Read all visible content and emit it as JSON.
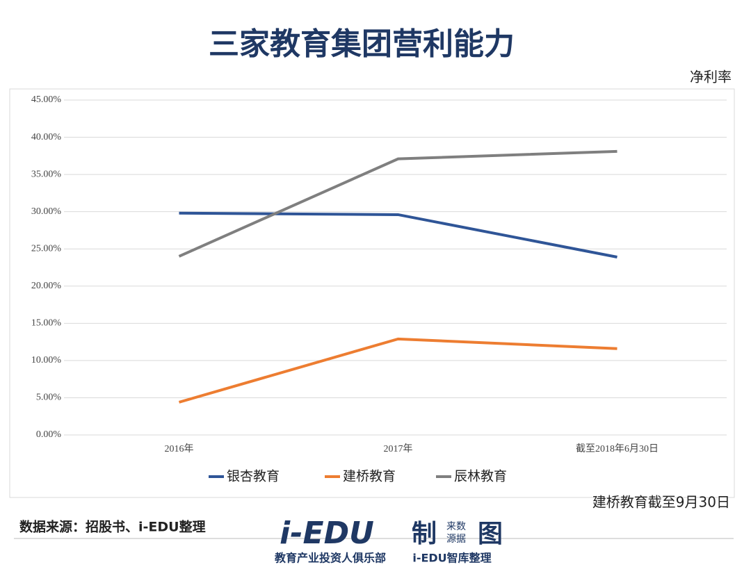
{
  "chart_data": {
    "type": "line",
    "title": "三家教育集团营利能力",
    "y_label": "净利率",
    "note": "建桥教育截至9月30日",
    "categories": [
      "2016年",
      "2017年",
      "截至2018年6月30日"
    ],
    "series": [
      {
        "name": "银杏教育",
        "color": "#2f5597",
        "values": [
          29.8,
          29.6,
          23.9
        ]
      },
      {
        "name": "建桥教育",
        "color": "#ed7d31",
        "values": [
          4.4,
          12.9,
          11.6
        ]
      },
      {
        "name": "辰林教育",
        "color": "#7f7f7f",
        "values": [
          24.0,
          37.1,
          38.1
        ]
      }
    ],
    "ylim": [
      0,
      45
    ],
    "yticks": [
      {
        "value": 0,
        "label": "0.00%"
      },
      {
        "value": 5,
        "label": "5.00%"
      },
      {
        "value": 10,
        "label": "10.00%"
      },
      {
        "value": 15,
        "label": "15.00%"
      },
      {
        "value": 20,
        "label": "20.00%"
      },
      {
        "value": 25,
        "label": "25.00%"
      },
      {
        "value": 30,
        "label": "30.00%"
      },
      {
        "value": 35,
        "label": "35.00%"
      },
      {
        "value": 40,
        "label": "40.00%"
      },
      {
        "value": 45,
        "label": "45.00%"
      }
    ],
    "grid": true,
    "legend": "bottom"
  },
  "footer": {
    "source": "数据来源：招股书、i-EDU整理",
    "brand": "i-EDU",
    "mark": "制",
    "sub_top": "来数",
    "sub_bottom": "源据",
    "icon": "图",
    "slogan": "教育产业投资人俱乐部",
    "org": "i-EDU智库整理"
  }
}
